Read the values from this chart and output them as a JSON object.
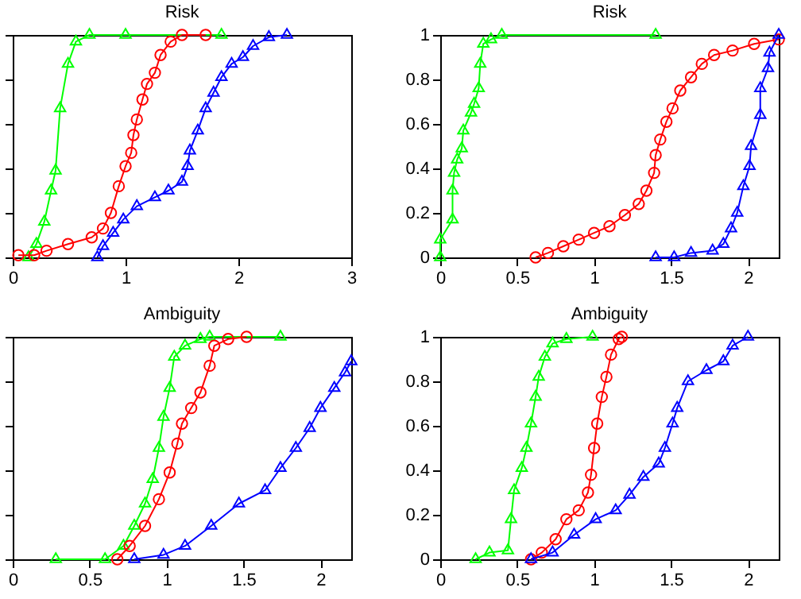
{
  "chart_data": [
    {
      "type": "line",
      "title": "Risk",
      "xlim": [
        0,
        3
      ],
      "xticks": [
        0,
        1,
        2,
        3
      ],
      "ylim": [
        0,
        1
      ],
      "yticks": [
        0,
        0.2,
        0.4,
        0.6,
        0.8,
        1
      ],
      "tick_labels": "x",
      "series": [
        {
          "color": "#00ff00",
          "marker": "triangle",
          "x": [
            0.14,
            0.21,
            0.28,
            0.34,
            0.38,
            0.42,
            0.49,
            0.56,
            0.68,
            1.0,
            1.85
          ],
          "values": [
            0,
            0.06,
            0.16,
            0.3,
            0.39,
            0.67,
            0.87,
            0.97,
            1,
            1,
            1
          ]
        },
        {
          "color": "#ff0000",
          "marker": "circle",
          "x": [
            0.05,
            0.19,
            0.3,
            0.49,
            0.7,
            0.8,
            0.87,
            0.94,
            1.0,
            1.05,
            1.07,
            1.1,
            1.15,
            1.19,
            1.26,
            1.31,
            1.4,
            1.5,
            1.71
          ],
          "values": [
            0.01,
            0.01,
            0.03,
            0.06,
            0.09,
            0.13,
            0.2,
            0.32,
            0.41,
            0.47,
            0.55,
            0.62,
            0.71,
            0.78,
            0.83,
            0.91,
            0.97,
            1,
            1
          ]
        },
        {
          "color": "#0000ff",
          "marker": "triangle",
          "x": [
            0.75,
            0.8,
            0.89,
            0.98,
            1.1,
            1.26,
            1.38,
            1.5,
            1.55,
            1.57,
            1.64,
            1.71,
            1.78,
            1.85,
            1.94,
            2.04,
            2.13,
            2.27,
            2.43
          ],
          "values": [
            0,
            0.05,
            0.11,
            0.17,
            0.23,
            0.27,
            0.3,
            0.34,
            0.41,
            0.48,
            0.57,
            0.67,
            0.74,
            0.81,
            0.87,
            0.9,
            0.95,
            0.99,
            1
          ]
        }
      ]
    },
    {
      "type": "line",
      "title": "Risk",
      "xlim": [
        0,
        2.2
      ],
      "xticks": [
        0,
        0.5,
        1,
        1.5,
        2
      ],
      "ylim": [
        0,
        1
      ],
      "yticks": [
        0,
        0.2,
        0.4,
        0.6,
        0.8,
        1
      ],
      "series": [
        {
          "color": "#00ff00",
          "marker": "triangle",
          "x": [
            0,
            0,
            0.08,
            0.08,
            0.09,
            0.11,
            0.14,
            0.15,
            0.2,
            0.22,
            0.25,
            0.26,
            0.28,
            0.33,
            0.4,
            1.4
          ],
          "values": [
            0,
            0.08,
            0.17,
            0.3,
            0.38,
            0.44,
            0.49,
            0.57,
            0.65,
            0.69,
            0.76,
            0.87,
            0.96,
            0.98,
            1,
            1
          ]
        },
        {
          "color": "#ff0000",
          "marker": "circle",
          "x": [
            0.62,
            0.7,
            0.8,
            0.9,
            1.0,
            1.1,
            1.2,
            1.29,
            1.34,
            1.39,
            1.4,
            1.43,
            1.47,
            1.51,
            1.56,
            1.63,
            1.7,
            1.78,
            1.9,
            2.04,
            2.2
          ],
          "values": [
            0,
            0.02,
            0.05,
            0.08,
            0.11,
            0.14,
            0.19,
            0.24,
            0.3,
            0.38,
            0.46,
            0.53,
            0.61,
            0.67,
            0.75,
            0.81,
            0.87,
            0.91,
            0.93,
            0.96,
            0.98
          ]
        },
        {
          "color": "#0000ff",
          "marker": "triangle",
          "x": [
            1.4,
            1.52,
            1.63,
            1.77,
            1.84,
            1.89,
            1.93,
            1.97,
            2.01,
            2.02,
            2.08,
            2.08,
            2.13,
            2.14,
            2.2
          ],
          "values": [
            0,
            0,
            0.02,
            0.03,
            0.06,
            0.13,
            0.2,
            0.32,
            0.41,
            0.5,
            0.64,
            0.76,
            0.85,
            0.92,
            1
          ]
        }
      ]
    },
    {
      "type": "line",
      "title": "Ambiguity",
      "xlim": [
        0,
        2.2
      ],
      "xticks": [
        0,
        0.5,
        1,
        1.5,
        2
      ],
      "ylim": [
        0,
        1
      ],
      "yticks": [
        0,
        0.2,
        0.4,
        0.6,
        0.8,
        1
      ],
      "tick_labels": "x",
      "series": [
        {
          "color": "#00ff00",
          "marker": "triangle",
          "x": [
            0.28,
            0.6,
            0.72,
            0.79,
            0.86,
            0.91,
            0.95,
            0.98,
            1.02,
            1.05,
            1.12,
            1.22,
            1.28,
            1.74
          ],
          "values": [
            0,
            0,
            0.06,
            0.15,
            0.25,
            0.36,
            0.5,
            0.64,
            0.77,
            0.91,
            0.96,
            0.99,
            1,
            1
          ]
        },
        {
          "color": "#ff0000",
          "marker": "circle",
          "x": [
            0.68,
            0.76,
            0.86,
            0.95,
            1.02,
            1.07,
            1.1,
            1.16,
            1.22,
            1.28,
            1.31,
            1.4,
            1.52
          ],
          "values": [
            0,
            0.06,
            0.15,
            0.27,
            0.39,
            0.52,
            0.61,
            0.68,
            0.75,
            0.87,
            0.96,
            0.99,
            1
          ]
        },
        {
          "color": "#0000ff",
          "marker": "triangle",
          "x": [
            0.79,
            0.98,
            1.12,
            1.29,
            1.47,
            1.64,
            1.74,
            1.84,
            1.93,
            2.0,
            2.09,
            2.16,
            2.2
          ],
          "values": [
            0,
            0.02,
            0.06,
            0.15,
            0.25,
            0.31,
            0.41,
            0.5,
            0.59,
            0.68,
            0.77,
            0.84,
            0.89
          ]
        }
      ]
    },
    {
      "type": "line",
      "title": "Ambiguity",
      "xlim": [
        0,
        2.2
      ],
      "xticks": [
        0,
        0.5,
        1,
        1.5,
        2
      ],
      "ylim": [
        0,
        1
      ],
      "yticks": [
        0,
        0.2,
        0.4,
        0.6,
        0.8,
        1
      ],
      "series": [
        {
          "color": "#00ff00",
          "marker": "triangle",
          "x": [
            0.23,
            0.32,
            0.44,
            0.46,
            0.48,
            0.53,
            0.56,
            0.59,
            0.62,
            0.64,
            0.68,
            0.73,
            0.82,
            0.99
          ],
          "values": [
            0,
            0.03,
            0.04,
            0.18,
            0.31,
            0.41,
            0.5,
            0.61,
            0.73,
            0.82,
            0.91,
            0.97,
            0.99,
            1
          ]
        },
        {
          "color": "#ff0000",
          "marker": "circle",
          "x": [
            0.59,
            0.66,
            0.75,
            0.82,
            0.9,
            0.96,
            0.98,
            1.0,
            1.02,
            1.05,
            1.08,
            1.11,
            1.16,
            1.18
          ],
          "values": [
            0,
            0.03,
            0.09,
            0.18,
            0.22,
            0.3,
            0.38,
            0.5,
            0.61,
            0.73,
            0.82,
            0.92,
            0.99,
            1
          ]
        },
        {
          "color": "#0000ff",
          "marker": "triangle",
          "x": [
            0.59,
            0.73,
            0.87,
            1.01,
            1.14,
            1.23,
            1.32,
            1.42,
            1.46,
            1.51,
            1.54,
            1.61,
            1.73,
            1.84,
            1.9,
            2.0
          ],
          "values": [
            0,
            0.03,
            0.11,
            0.18,
            0.22,
            0.29,
            0.37,
            0.43,
            0.5,
            0.61,
            0.68,
            0.8,
            0.85,
            0.89,
            0.96,
            1
          ]
        }
      ]
    }
  ]
}
